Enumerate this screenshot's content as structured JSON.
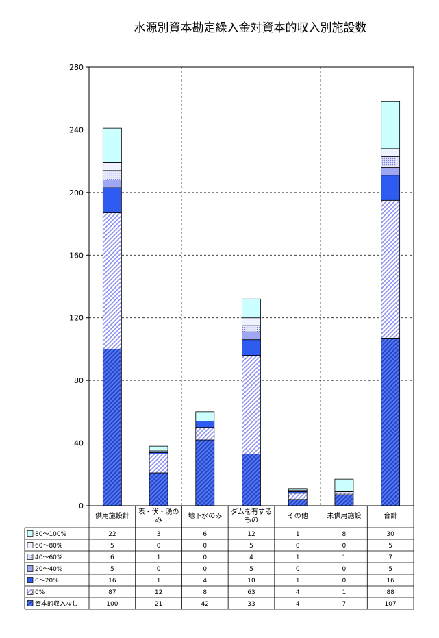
{
  "chart_data": {
    "type": "bar",
    "stacked": true,
    "title": "水源別資本勘定繰入金対資本的収入別施設数",
    "categories": [
      "供用施設計",
      "表・伏・湧のみ",
      "地下水のみ",
      "ダムを有するもの",
      "その他",
      "未供用施設",
      "合計"
    ],
    "category_lines": [
      [
        "供用施設計"
      ],
      [
        "表・伏・湧の",
        "み"
      ],
      [
        "地下水のみ"
      ],
      [
        "ダムを有する",
        "もの"
      ],
      [
        "その他"
      ],
      [
        "未供用施設"
      ],
      [
        "合計"
      ]
    ],
    "ylim": [
      0,
      280
    ],
    "yticks": [
      0,
      40,
      80,
      120,
      160,
      200,
      240,
      280
    ],
    "grid": true,
    "legend": "data-table",
    "series": [
      {
        "name": "資本的収入なし",
        "values": [
          100,
          21,
          42,
          33,
          4,
          7,
          107
        ],
        "color": "#3a5fe0",
        "pattern": "hatch-dense"
      },
      {
        "name": "0%",
        "values": [
          87,
          12,
          8,
          63,
          4,
          1,
          88
        ],
        "color": "#9aa4ee",
        "pattern": "hatch-light"
      },
      {
        "name": "0～20%",
        "values": [
          16,
          1,
          4,
          10,
          1,
          0,
          16
        ],
        "color": "#2f5cf0",
        "pattern": "solid"
      },
      {
        "name": "20～40%",
        "values": [
          5,
          0,
          0,
          5,
          0,
          0,
          5
        ],
        "color": "#9fa6f2",
        "pattern": "solid"
      },
      {
        "name": "40～60%",
        "values": [
          6,
          1,
          0,
          4,
          1,
          1,
          7
        ],
        "color": "#c8ccf6",
        "pattern": "dots"
      },
      {
        "name": "60～80%",
        "values": [
          5,
          0,
          0,
          5,
          0,
          0,
          5
        ],
        "color": "#eef3ff",
        "pattern": "solid"
      },
      {
        "name": "80～100%",
        "values": [
          22,
          3,
          6,
          12,
          1,
          8,
          30
        ],
        "color": "#ccffff",
        "pattern": "solid"
      }
    ]
  }
}
